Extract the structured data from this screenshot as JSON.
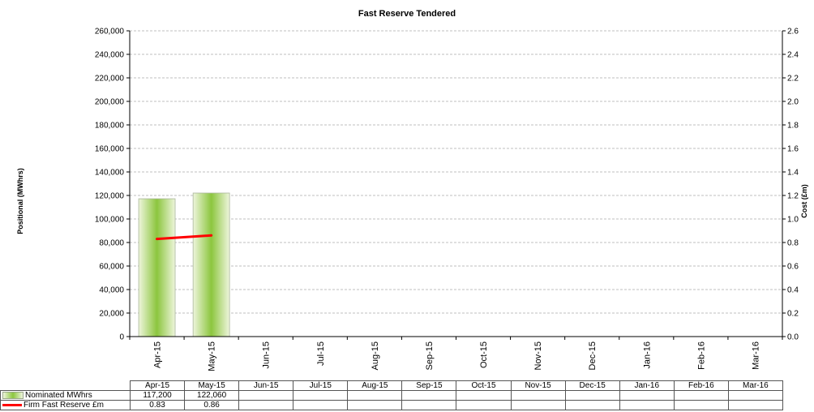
{
  "chart_data": {
    "type": "bar",
    "title": "Fast Reserve Tendered",
    "categories": [
      "Apr-15",
      "May-15",
      "Jun-15",
      "Jul-15",
      "Aug-15",
      "Sep-15",
      "Oct-15",
      "Nov-15",
      "Dec-15",
      "Jan-16",
      "Feb-16",
      "Mar-16"
    ],
    "ylabel": "Positional (MWhrs)",
    "y2label": "Cost (£m)",
    "ylim": [
      0,
      260000
    ],
    "y2lim": [
      0,
      2.6
    ],
    "yticks": [
      "0",
      "20,000",
      "40,000",
      "60,000",
      "80,000",
      "100,000",
      "120,000",
      "140,000",
      "160,000",
      "180,000",
      "200,000",
      "220,000",
      "240,000",
      "260,000"
    ],
    "y2ticks": [
      "0.0",
      "0.2",
      "0.4",
      "0.6",
      "0.8",
      "1.0",
      "1.2",
      "1.4",
      "1.6",
      "1.8",
      "2.0",
      "2.2",
      "2.4",
      "2.6"
    ],
    "grid": true,
    "series": [
      {
        "name": "Nominated MWhrs",
        "type": "bar",
        "axis": "left",
        "values": [
          117200,
          122060,
          null,
          null,
          null,
          null,
          null,
          null,
          null,
          null,
          null,
          null
        ],
        "color": "#8cc63e"
      },
      {
        "name": "Firm Fast Reserve £m",
        "type": "line",
        "axis": "right",
        "values": [
          0.83,
          0.86,
          null,
          null,
          null,
          null,
          null,
          null,
          null,
          null,
          null,
          null
        ],
        "color": "#ff0000"
      }
    ],
    "table": {
      "rows": [
        {
          "label": "Nominated MWhrs",
          "cells": [
            "117,200",
            "122,060",
            "",
            "",
            "",
            "",
            "",
            "",
            "",
            "",
            "",
            ""
          ]
        },
        {
          "label": "Firm Fast Reserve £m",
          "cells": [
            "0.83",
            "0.86",
            "",
            "",
            "",
            "",
            "",
            "",
            "",
            "",
            "",
            ""
          ]
        }
      ]
    }
  }
}
